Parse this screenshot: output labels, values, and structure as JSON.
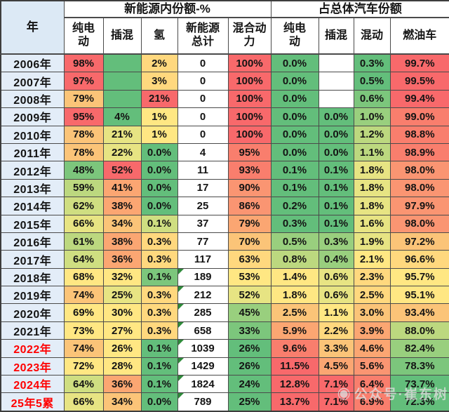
{
  "watermark": {
    "icon": "wechat-official-account-logo",
    "text": "公众号·崔东树"
  },
  "chart_data": {
    "type": "table",
    "title": "",
    "header": {
      "year_col_label": "年",
      "groups": [
        {
          "label": "新能源内份额-%",
          "columns": [
            "纯电\n动",
            "插混",
            "氢",
            "新能源\n总计",
            "混合动\n力"
          ]
        },
        {
          "label": "占总体汽车份额",
          "columns": [
            "纯电\n动",
            "插混",
            "混动",
            "燃油车"
          ]
        }
      ]
    },
    "palette": {
      "R": "#F8696B",
      "S": "#F97E6D",
      "OS": "#FA9572",
      "O": "#FBA672",
      "LO": "#FBC478",
      "YO": "#FFD87E",
      "Y": "#FFE783",
      "YG": "#E7E483",
      "LG2": "#CFDE81",
      "LG": "#BCD87F",
      "PG": "#99CF7E",
      "G2": "#7CC67C",
      "G": "#63BE7B",
      "W": "#FFFFFF"
    },
    "grid_color": "#4a4a4a",
    "year_column_bg": "#e3edf8",
    "red_year_color": "#ff0000",
    "corner_triangle_color": "#2e8b3a",
    "rows": [
      {
        "year": "2006年",
        "red": false,
        "cells": [
          [
            "98%",
            "R"
          ],
          [
            "",
            "G"
          ],
          [
            "2%",
            "YO"
          ],
          [
            "0",
            "W"
          ],
          [
            "100%",
            "R"
          ],
          [
            "0.0%",
            "G"
          ],
          [
            "",
            "W"
          ],
          [
            "0.3%",
            "G"
          ],
          [
            "99.7%",
            "R"
          ]
        ]
      },
      {
        "year": "2007年",
        "red": false,
        "cells": [
          [
            "97%",
            "R"
          ],
          [
            "",
            "G"
          ],
          [
            "3%",
            "YO"
          ],
          [
            "0",
            "W"
          ],
          [
            "100%",
            "R"
          ],
          [
            "0.0%",
            "G"
          ],
          [
            "",
            "W"
          ],
          [
            "0.5%",
            "G"
          ],
          [
            "99.5%",
            "R"
          ]
        ]
      },
      {
        "year": "2008年",
        "red": false,
        "cells": [
          [
            "79%",
            "LO"
          ],
          [
            "",
            "G"
          ],
          [
            "21%",
            "R"
          ],
          [
            "0",
            "W"
          ],
          [
            "100%",
            "R"
          ],
          [
            "0.0%",
            "G"
          ],
          [
            "",
            "W"
          ],
          [
            "0.6%",
            "G2"
          ],
          [
            "99.4%",
            "R"
          ]
        ]
      },
      {
        "year": "2009年",
        "red": false,
        "cells": [
          [
            "95%",
            "R"
          ],
          [
            "4%",
            "G"
          ],
          [
            "1%",
            "Y"
          ],
          [
            "0",
            "W"
          ],
          [
            "100%",
            "R"
          ],
          [
            "0.0%",
            "G"
          ],
          [
            "0.0%",
            "G"
          ],
          [
            "1.0%",
            "PG"
          ],
          [
            "99.0%",
            "S"
          ]
        ]
      },
      {
        "year": "2010年",
        "red": false,
        "cells": [
          [
            "78%",
            "LO"
          ],
          [
            "21%",
            "YG"
          ],
          [
            "1%",
            "Y"
          ],
          [
            "0",
            "W"
          ],
          [
            "100%",
            "R"
          ],
          [
            "0.0%",
            "G"
          ],
          [
            "0.0%",
            "G"
          ],
          [
            "1.2%",
            "LG"
          ],
          [
            "98.8%",
            "S"
          ]
        ]
      },
      {
        "year": "2011年",
        "red": false,
        "cells": [
          [
            "78%",
            "LO"
          ],
          [
            "22%",
            "YG"
          ],
          [
            "0.0%",
            "G"
          ],
          [
            "4",
            "W"
          ],
          [
            "95%",
            "S"
          ],
          [
            "0.0%",
            "G"
          ],
          [
            "0.0%",
            "G"
          ],
          [
            "1.1%",
            "LG"
          ],
          [
            "98.9%",
            "S"
          ]
        ]
      },
      {
        "year": "2012年",
        "red": false,
        "cells": [
          [
            "48%",
            "G2"
          ],
          [
            "52%",
            "R"
          ],
          [
            "0.0%",
            "G"
          ],
          [
            "11",
            "W"
          ],
          [
            "93%",
            "S"
          ],
          [
            "0.1%",
            "G"
          ],
          [
            "0.1%",
            "G"
          ],
          [
            "1.8%",
            "YG"
          ],
          [
            "98.0%",
            "OS"
          ]
        ]
      },
      {
        "year": "2013年",
        "red": false,
        "cells": [
          [
            "59%",
            "LG"
          ],
          [
            "41%",
            "O"
          ],
          [
            "0.0%",
            "G"
          ],
          [
            "17",
            "W"
          ],
          [
            "90%",
            "OS"
          ],
          [
            "0.1%",
            "G"
          ],
          [
            "0.1%",
            "G"
          ],
          [
            "1.8%",
            "YG"
          ],
          [
            "98.0%",
            "OS"
          ]
        ]
      },
      {
        "year": "2014年",
        "red": false,
        "cells": [
          [
            "62%",
            "LG2"
          ],
          [
            "38%",
            "O"
          ],
          [
            "0.0%",
            "G"
          ],
          [
            "25",
            "W"
          ],
          [
            "86%",
            "OS"
          ],
          [
            "0.2%",
            "G"
          ],
          [
            "0.1%",
            "G"
          ],
          [
            "1.8%",
            "YG"
          ],
          [
            "97.9%",
            "OS"
          ]
        ]
      },
      {
        "year": "2015年",
        "red": false,
        "cells": [
          [
            "66%",
            "YG"
          ],
          [
            "34%",
            "LO"
          ],
          [
            "0.1%",
            "LG2"
          ],
          [
            "37",
            "W"
          ],
          [
            "79%",
            "O"
          ],
          [
            "0.3%",
            "G"
          ],
          [
            "0.1%",
            "G"
          ],
          [
            "1.6%",
            "YG"
          ],
          [
            "98.0%",
            "OS"
          ]
        ]
      },
      {
        "year": "2016年",
        "red": false,
        "cells": [
          [
            "61%",
            "LG"
          ],
          [
            "38%",
            "O"
          ],
          [
            "0.3%",
            "YO"
          ],
          [
            "77",
            "W"
          ],
          [
            "70%",
            "LO"
          ],
          [
            "0.5%",
            "PG"
          ],
          [
            "0.3%",
            "PG"
          ],
          [
            "1.9%",
            "YG"
          ],
          [
            "97.2%",
            "LO"
          ]
        ]
      },
      {
        "year": "2017年",
        "red": false,
        "cells": [
          [
            "64%",
            "LG2"
          ],
          [
            "36%",
            "O"
          ],
          [
            "0.3%",
            "YO"
          ],
          [
            "117",
            "W"
          ],
          [
            "63%",
            "YO"
          ],
          [
            "0.8%",
            "LG"
          ],
          [
            "0.4%",
            "PG"
          ],
          [
            "2.1%",
            "Y"
          ],
          [
            "96.6%",
            "YO"
          ]
        ]
      },
      {
        "year": "2018年",
        "red": false,
        "cells": [
          [
            "68%",
            "Y"
          ],
          [
            "32%",
            "Y"
          ],
          [
            "0.1%",
            "G2"
          ],
          [
            "189",
            "W",
            "tri"
          ],
          [
            "53%",
            "Y"
          ],
          [
            "1.4%",
            "Y"
          ],
          [
            "0.6%",
            "YG"
          ],
          [
            "2.3%",
            "YO"
          ],
          [
            "95.7%",
            "Y"
          ]
        ]
      },
      {
        "year": "2019年",
        "red": false,
        "cells": [
          [
            "74%",
            "LO"
          ],
          [
            "25%",
            "YG"
          ],
          [
            "0.3%",
            "YO"
          ],
          [
            "212",
            "W",
            "tri"
          ],
          [
            "52%",
            "YG"
          ],
          [
            "1.8%",
            "Y"
          ],
          [
            "0.6%",
            "YG"
          ],
          [
            "2.5%",
            "YO"
          ],
          [
            "95.1%",
            "Y"
          ]
        ]
      },
      {
        "year": "2020年",
        "red": false,
        "cells": [
          [
            "69%",
            "Y"
          ],
          [
            "30%",
            "Y"
          ],
          [
            "0.3%",
            "YO"
          ],
          [
            "285",
            "W",
            "tri"
          ],
          [
            "45%",
            "PG"
          ],
          [
            "2.5%",
            "LO"
          ],
          [
            "1.1%",
            "Y"
          ],
          [
            "3.0%",
            "LO"
          ],
          [
            "93.4%",
            "LO"
          ]
        ]
      },
      {
        "year": "2021年",
        "red": false,
        "cells": [
          [
            "73%",
            "Y"
          ],
          [
            "27%",
            "Y"
          ],
          [
            "0.3%",
            "YO"
          ],
          [
            "658",
            "W",
            "tri"
          ],
          [
            "33%",
            "G2"
          ],
          [
            "5.9%",
            "O"
          ],
          [
            "2.2%",
            "YO"
          ],
          [
            "3.9%",
            "O"
          ],
          [
            "88.0%",
            "LG"
          ]
        ]
      },
      {
        "year": "2022年",
        "red": true,
        "cells": [
          [
            "74%",
            "LO"
          ],
          [
            "26%",
            "Y"
          ],
          [
            "0.1%",
            "G"
          ],
          [
            "1039",
            "W",
            "tri"
          ],
          [
            "26%",
            "G"
          ],
          [
            "9.6%",
            "S"
          ],
          [
            "3.3%",
            "LO"
          ],
          [
            "4.6%",
            "O"
          ],
          [
            "82.4%",
            "PG"
          ]
        ]
      },
      {
        "year": "2023年",
        "red": true,
        "cells": [
          [
            "72%",
            "Y"
          ],
          [
            "28%",
            "Y"
          ],
          [
            "0.1%",
            "G"
          ],
          [
            "1429",
            "W",
            "tri"
          ],
          [
            "26%",
            "G"
          ],
          [
            "11.5%",
            "R"
          ],
          [
            "4.5%",
            "O"
          ],
          [
            "5.6%",
            "OS"
          ],
          [
            "78.3%",
            "G2"
          ]
        ]
      },
      {
        "year": "2024年",
        "red": true,
        "cells": [
          [
            "64%",
            "LG2"
          ],
          [
            "36%",
            "O"
          ],
          [
            "0.1%",
            "G"
          ],
          [
            "1824",
            "W",
            "tri"
          ],
          [
            "24%",
            "G"
          ],
          [
            "12.8%",
            "R"
          ],
          [
            "7.1%",
            "R"
          ],
          [
            "6.4%",
            "S"
          ],
          [
            "73.7%",
            "G"
          ]
        ]
      },
      {
        "year": "25年5累",
        "red": true,
        "cells": [
          [
            "66%",
            "YG"
          ],
          [
            "34%",
            "LO"
          ],
          [
            "0.0%",
            "G"
          ],
          [
            "789",
            "W",
            "tri"
          ],
          [
            "25%",
            "G"
          ],
          [
            "13.7%",
            "R"
          ],
          [
            "7.1%",
            "R"
          ],
          [
            "6.9%",
            "S"
          ],
          [
            "72.3%",
            "G"
          ]
        ]
      }
    ]
  }
}
